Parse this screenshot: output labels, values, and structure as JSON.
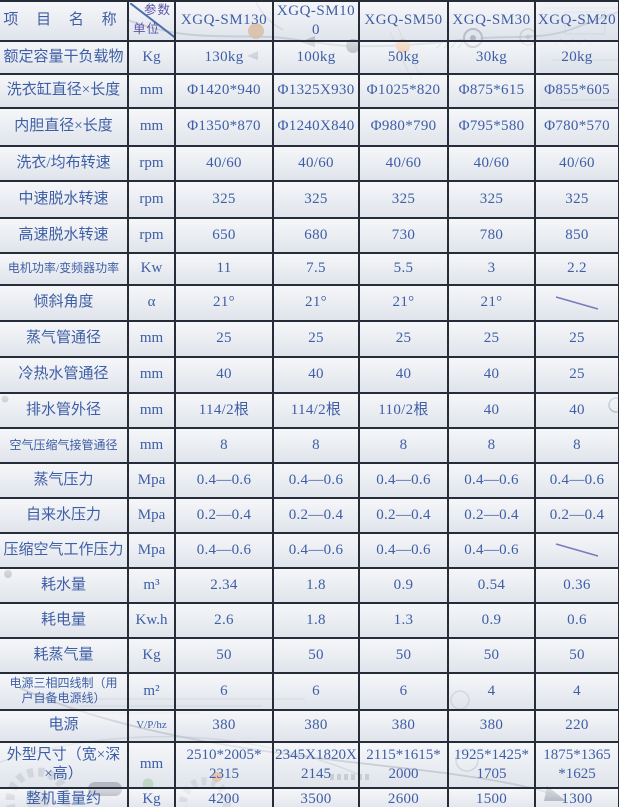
{
  "table": {
    "header": {
      "item_label": "项 目 名 称",
      "param_label": "参数",
      "unit_label": "单位",
      "models": [
        "XGQ-SM130",
        "XGQ-SM100",
        "XGQ-SM50",
        "XGQ-SM30",
        "XGQ-SM20"
      ]
    },
    "rows": [
      {
        "name": "额定容量干负载物",
        "unit": "Kg",
        "values": [
          "130kg",
          "100kg",
          "50kg",
          "30kg",
          "20kg"
        ]
      },
      {
        "name": "洗衣缸直径×长度",
        "unit": "mm",
        "values": [
          "Φ1420*940",
          "Φ1325X930",
          "Φ1025*820",
          "Φ875*615",
          "Φ855*605"
        ]
      },
      {
        "name": "内胆直径×长度",
        "unit": "mm",
        "values": [
          "Φ1350*870",
          "Φ1240X840",
          "Φ980*790",
          "Φ795*580",
          "Φ780*570"
        ]
      },
      {
        "name": "洗衣/均布转速",
        "unit": "rpm",
        "values": [
          "40/60",
          "40/60",
          "40/60",
          "40/60",
          "40/60"
        ]
      },
      {
        "name": "中速脱水转速",
        "unit": "rpm",
        "values": [
          "325",
          "325",
          "325",
          "325",
          "325"
        ]
      },
      {
        "name": "高速脱水转速",
        "unit": "rpm",
        "values": [
          "650",
          "680",
          "730",
          "780",
          "850"
        ]
      },
      {
        "name": "电机功率/变频器功率",
        "unit": "Kw",
        "values": [
          "11",
          "7.5",
          "5.5",
          "3",
          "2.2"
        ]
      },
      {
        "name": "倾斜角度",
        "unit": "α",
        "values": [
          "21°",
          "21°",
          "21°",
          "21°",
          "\\"
        ]
      },
      {
        "name": "蒸气管通径",
        "unit": "mm",
        "values": [
          "25",
          "25",
          "25",
          "25",
          "25"
        ]
      },
      {
        "name": "冷热水管通径",
        "unit": "mm",
        "values": [
          "40",
          "40",
          "40",
          "40",
          "25"
        ]
      },
      {
        "name": "排水管外径",
        "unit": "mm",
        "values": [
          "114/2根",
          "114/2根",
          "110/2根",
          "40",
          "40"
        ]
      },
      {
        "name": "空气压缩气接管通径",
        "unit": "mm",
        "values": [
          "8",
          "8",
          "8",
          "8",
          "8"
        ]
      },
      {
        "name": "蒸气压力",
        "unit": "Mpa",
        "values": [
          "0.4—0.6",
          "0.4—0.6",
          "0.4—0.6",
          "0.4—0.6",
          "0.4—0.6"
        ]
      },
      {
        "name": "自来水压力",
        "unit": "Mpa",
        "values": [
          "0.2—0.4",
          "0.2—0.4",
          "0.2—0.4",
          "0.2—0.4",
          "0.2—0.4"
        ]
      },
      {
        "name": "压缩空气工作压力",
        "unit": "Mpa",
        "values": [
          "0.4—0.6",
          "0.4—0.6",
          "0.4—0.6",
          "0.4—0.6",
          "\\"
        ]
      },
      {
        "name": "耗水量",
        "unit": "m³",
        "values": [
          "2.34",
          "1.8",
          "0.9",
          "0.54",
          "0.36"
        ]
      },
      {
        "name": "耗电量",
        "unit": "Kw.h",
        "values": [
          "2.6",
          "1.8",
          "1.3",
          "0.9",
          "0.6"
        ]
      },
      {
        "name": "耗蒸气量",
        "unit": "Kg",
        "values": [
          "50",
          "50",
          "50",
          "50",
          "50"
        ]
      },
      {
        "name": "电源三相四线制（用\n户自备电源线）",
        "unit": "m²",
        "values": [
          "6",
          "6",
          "6",
          "4",
          "4"
        ]
      },
      {
        "name": "电源",
        "unit": "V/P/hz",
        "values": [
          "380",
          "380",
          "380",
          "380",
          "220"
        ]
      },
      {
        "name": "外型尺寸（宽×深\n×高）",
        "unit": "mm",
        "values": [
          "2510*2005*\n2315",
          "2345X1820X\n2145",
          "2115*1615*\n2000",
          "1925*1425*\n1705",
          "1875*1365\n*1625"
        ]
      },
      {
        "name": "整机重量约",
        "unit": "Kg",
        "values": [
          "4200",
          "3500",
          "2600",
          "1500",
          "1300"
        ]
      }
    ]
  },
  "colors": {
    "text_blue": "#3e5ea6",
    "header_blue": "#2f4f96",
    "param_purple": "#5a52a8",
    "border_dark": "#262c38",
    "background": "#e9ecf1",
    "diagonal_line": "#4a6fae",
    "slash_mark": "#7b79bd"
  }
}
